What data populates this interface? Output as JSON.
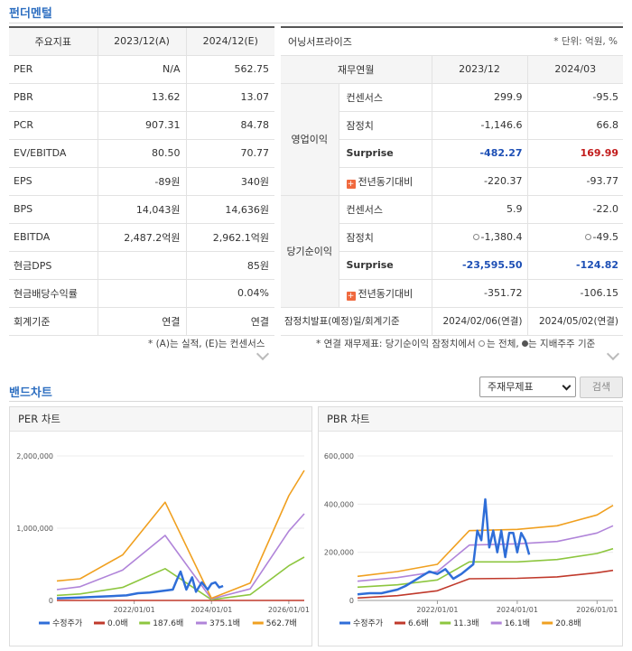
{
  "titles": {
    "fundamental": "펀더멘털",
    "band": "밴드차트"
  },
  "left_table": {
    "headers": [
      "주요지표",
      "2023/12(A)",
      "2024/12(E)"
    ],
    "rows": [
      {
        "label": "PER",
        "a": "N/A",
        "e": "562.75"
      },
      {
        "label": "PBR",
        "a": "13.62",
        "e": "13.07"
      },
      {
        "label": "PCR",
        "a": "907.31",
        "e": "84.78"
      },
      {
        "label": "EV/EBITDA",
        "a": "80.50",
        "e": "70.77"
      },
      {
        "label": "EPS",
        "a": "-89원",
        "e": "340원"
      },
      {
        "label": "BPS",
        "a": "14,043원",
        "e": "14,636원"
      },
      {
        "label": "EBITDA",
        "a": "2,487.2억원",
        "e": "2,962.1억원"
      },
      {
        "label": "현금DPS",
        "a": "",
        "e": "85원"
      },
      {
        "label": "현금배당수익률",
        "a": "",
        "e": "0.04%"
      },
      {
        "label": "회계기준",
        "a": "연결",
        "e": "연결"
      }
    ],
    "note": "* (A)는 실적, (E)는 컨센서스"
  },
  "right_table": {
    "title": "어닝서프라이즈",
    "unit": "* 단위: 억원, %",
    "sub_headers": [
      "재무연월",
      "2023/12",
      "2024/03"
    ],
    "groups": [
      {
        "name": "영업이익",
        "rows": [
          {
            "label": "컨센서스",
            "a": "299.9",
            "b": "-95.5"
          },
          {
            "label": "잠정치",
            "a": "-1,146.6",
            "b": "66.8"
          },
          {
            "label": "Surprise",
            "a": "-482.27",
            "b": "169.99"
          },
          {
            "label": "전년동기대비",
            "a": "-220.37",
            "b": "-93.77"
          }
        ]
      },
      {
        "name": "당기순이익",
        "rows": [
          {
            "label": "컨센서스",
            "a": "5.9",
            "b": "-22.0"
          },
          {
            "label": "잠정치",
            "a": "-1,380.4",
            "b": "-49.5"
          },
          {
            "label": "Surprise",
            "a": "-23,595.50",
            "b": "-124.82"
          },
          {
            "label": "전년동기대비",
            "a": "-351.72",
            "b": "-106.15"
          }
        ]
      }
    ],
    "footer": {
      "label": "잠정치발표(예정)일/회계기준",
      "a": "2024/02/06(연결)",
      "b": "2024/05/02(연결)"
    },
    "note_prefix": "* 연결 재무제표: 당기순이익 잠정치에서",
    "note_mid": "는 전체,",
    "note_suffix": "는 지배주주 기준"
  },
  "controls": {
    "select_value": "주재무제표",
    "search_button": "검색"
  },
  "colors": {
    "price": "#2f6ed8",
    "band0": "#c0392b",
    "band1": "#8dc63f",
    "band2": "#b084d9",
    "band3": "#f0a020",
    "accent": "#2e6fc1"
  },
  "chart_data": [
    {
      "type": "line",
      "title": "PER 차트",
      "x_ticks": [
        "2022/01/01",
        "2024/01/01",
        "2026/01/01"
      ],
      "y_ticks": [
        "0",
        "1,000,000",
        "2,000,000"
      ],
      "ylim": [
        0,
        2000000
      ],
      "xlim": [
        2020.0,
        2026.4
      ],
      "series": [
        {
          "name": "수정주가",
          "color": "#2f6ed8",
          "width": 2.5,
          "x": [
            2020.0,
            2020.3,
            2020.6,
            2021.0,
            2021.4,
            2021.8,
            2022.1,
            2022.4,
            2022.7,
            2023.0,
            2023.1,
            2023.2,
            2023.35,
            2023.5,
            2023.6,
            2023.75,
            2023.9,
            2024.0,
            2024.1,
            2024.2,
            2024.3
          ],
          "y": [
            30000,
            35000,
            40000,
            50000,
            60000,
            70000,
            100000,
            110000,
            130000,
            150000,
            280000,
            400000,
            150000,
            320000,
            120000,
            250000,
            150000,
            230000,
            250000,
            180000,
            200000
          ]
        },
        {
          "name": "0.0배",
          "color": "#c0392b",
          "width": 1.6,
          "x": [
            2020.0,
            2026.4
          ],
          "y": [
            0,
            0
          ]
        },
        {
          "name": "187.6배",
          "color": "#8dc63f",
          "width": 1.6,
          "x": [
            2020.0,
            2020.6,
            2021.7,
            2022.8,
            2024.0,
            2025.0,
            2026.0,
            2026.4
          ],
          "y": [
            70000,
            90000,
            180000,
            440000,
            10000,
            80000,
            480000,
            600000
          ]
        },
        {
          "name": "375.1배",
          "color": "#b084d9",
          "width": 1.6,
          "x": [
            2020.0,
            2020.6,
            2021.7,
            2022.8,
            2024.0,
            2025.0,
            2026.0,
            2026.4
          ],
          "y": [
            150000,
            190000,
            420000,
            900000,
            20000,
            160000,
            960000,
            1200000
          ]
        },
        {
          "name": "562.7배",
          "color": "#f0a020",
          "width": 1.6,
          "x": [
            2020.0,
            2020.6,
            2021.7,
            2022.8,
            2024.0,
            2025.0,
            2026.0,
            2026.4
          ],
          "y": [
            270000,
            300000,
            630000,
            1360000,
            30000,
            240000,
            1450000,
            1800000
          ]
        }
      ]
    },
    {
      "type": "line",
      "title": "PBR 차트",
      "x_ticks": [
        "2022/01/01",
        "2024/01/01",
        "2026/01/01"
      ],
      "y_ticks": [
        "0",
        "200,000",
        "400,000",
        "600,000"
      ],
      "ylim": [
        0,
        600000
      ],
      "xlim": [
        2020.0,
        2026.4
      ],
      "series": [
        {
          "name": "수정주가",
          "color": "#2f6ed8",
          "width": 2.5,
          "x": [
            2020.0,
            2020.3,
            2020.6,
            2021.0,
            2021.2,
            2021.4,
            2021.6,
            2021.8,
            2022.0,
            2022.2,
            2022.4,
            2022.6,
            2022.9,
            2023.0,
            2023.1,
            2023.2,
            2023.3,
            2023.4,
            2023.5,
            2023.6,
            2023.7,
            2023.8,
            2023.9,
            2024.0,
            2024.1,
            2024.2,
            2024.3
          ],
          "y": [
            25000,
            30000,
            30000,
            45000,
            60000,
            80000,
            100000,
            120000,
            110000,
            130000,
            90000,
            110000,
            150000,
            290000,
            250000,
            420000,
            220000,
            290000,
            200000,
            290000,
            180000,
            280000,
            280000,
            200000,
            280000,
            250000,
            190000
          ]
        },
        {
          "name": "6.6배",
          "color": "#c0392b",
          "width": 1.6,
          "x": [
            2020.0,
            2021.0,
            2022.0,
            2022.8,
            2024.0,
            2025.0,
            2026.0,
            2026.4
          ],
          "y": [
            10000,
            20000,
            40000,
            90000,
            92000,
            98000,
            115000,
            125000
          ]
        },
        {
          "name": "11.3배",
          "color": "#8dc63f",
          "width": 1.6,
          "x": [
            2020.0,
            2021.0,
            2022.0,
            2022.8,
            2024.0,
            2025.0,
            2026.0,
            2026.4
          ],
          "y": [
            55000,
            65000,
            85000,
            160000,
            160000,
            170000,
            195000,
            215000
          ]
        },
        {
          "name": "16.1배",
          "color": "#b084d9",
          "width": 1.6,
          "x": [
            2020.0,
            2021.0,
            2022.0,
            2022.8,
            2024.0,
            2025.0,
            2026.0,
            2026.4
          ],
          "y": [
            80000,
            95000,
            120000,
            230000,
            235000,
            245000,
            280000,
            310000
          ]
        },
        {
          "name": "20.8배",
          "color": "#f0a020",
          "width": 1.6,
          "x": [
            2020.0,
            2021.0,
            2022.0,
            2022.8,
            2024.0,
            2025.0,
            2026.0,
            2026.4
          ],
          "y": [
            100000,
            120000,
            150000,
            290000,
            295000,
            310000,
            355000,
            395000
          ]
        }
      ]
    }
  ]
}
